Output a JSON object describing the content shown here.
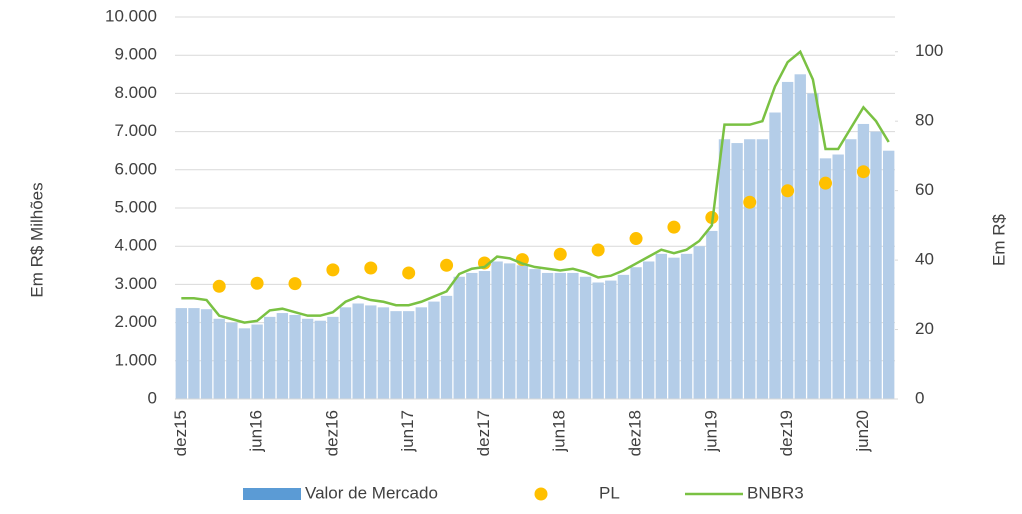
{
  "chart_data": {
    "type": "combo",
    "y_label": "Em R$ Milhões",
    "y2_label": "Em R$",
    "categories": [
      "dez15",
      null,
      null,
      null,
      null,
      null,
      "jun16",
      null,
      null,
      null,
      null,
      null,
      "dez16",
      null,
      null,
      null,
      null,
      null,
      "jun17",
      null,
      null,
      null,
      null,
      null,
      "dez17",
      null,
      null,
      null,
      null,
      null,
      "jun18",
      null,
      null,
      null,
      null,
      null,
      "dez18",
      null,
      null,
      null,
      null,
      null,
      "jun19",
      null,
      null,
      null,
      null,
      null,
      "dez19",
      null,
      null,
      null,
      null,
      null,
      "jun20",
      null,
      null
    ],
    "series": [
      {
        "name": "Valor de Mercado",
        "kind": "bar",
        "color": "#b4cde8",
        "legend_color": "#5b9bd5",
        "values": [
          2380,
          2380,
          2350,
          2100,
          2000,
          1850,
          1950,
          2150,
          2250,
          2200,
          2100,
          2050,
          2150,
          2400,
          2500,
          2450,
          2400,
          2300,
          2300,
          2400,
          2550,
          2700,
          3200,
          3300,
          3350,
          3600,
          3550,
          3500,
          3400,
          3300,
          3300,
          3300,
          3200,
          3050,
          3100,
          3250,
          3450,
          3600,
          3800,
          3700,
          3800,
          4000,
          4400,
          6800,
          6700,
          6800,
          6800,
          7500,
          8300,
          8500,
          8000,
          6300,
          6400,
          6800,
          7200,
          7000,
          6500
        ]
      },
      {
        "name": "PL",
        "kind": "dot",
        "color": "#ffc000",
        "values": [
          null,
          null,
          null,
          2950,
          null,
          null,
          3030,
          null,
          null,
          3020,
          null,
          null,
          3380,
          null,
          null,
          3430,
          null,
          null,
          3300,
          null,
          null,
          3500,
          null,
          null,
          3560,
          null,
          null,
          3650,
          null,
          null,
          3790,
          null,
          null,
          3900,
          null,
          null,
          4200,
          null,
          null,
          4500,
          null,
          null,
          4750,
          null,
          null,
          5150,
          null,
          null,
          5450,
          null,
          null,
          5650,
          null,
          null,
          5950,
          null,
          null
        ]
      },
      {
        "name": "BNBR3",
        "kind": "line",
        "color": "#7ac143",
        "axis": "y2",
        "values": [
          29,
          29,
          28.5,
          24,
          23,
          22,
          22.5,
          25.5,
          26,
          25,
          24,
          24,
          25,
          28,
          29.5,
          28.5,
          28,
          27,
          27,
          28,
          29.5,
          31,
          36,
          37.5,
          38,
          41,
          40.5,
          39,
          38,
          37.5,
          37,
          37.5,
          36.5,
          35,
          35.5,
          37,
          39,
          41,
          43,
          42,
          43,
          45.5,
          50,
          79,
          79,
          79,
          80,
          90,
          97,
          100,
          92,
          72,
          72,
          78,
          84,
          80,
          74
        ]
      }
    ],
    "ylim": [
      0,
      10000
    ],
    "yticks": [
      0,
      {
        "value": 1000,
        "label": "1.000"
      },
      {
        "value": 2000,
        "label": "2.000"
      },
      {
        "value": 3000,
        "label": "3.000"
      },
      {
        "value": 4000,
        "label": "4.000"
      },
      {
        "value": 5000,
        "label": "5.000"
      },
      {
        "value": 6000,
        "label": "6.000"
      },
      {
        "value": 7000,
        "label": "7.000"
      },
      {
        "value": 8000,
        "label": "8.000"
      },
      {
        "value": 9000,
        "label": "9.000"
      },
      {
        "value": 10000,
        "label": "10.000"
      }
    ],
    "y2lim": [
      0,
      110
    ],
    "y2ticks": [
      0,
      20,
      40,
      60,
      80,
      100
    ],
    "grid": true,
    "legend": "bottom"
  }
}
